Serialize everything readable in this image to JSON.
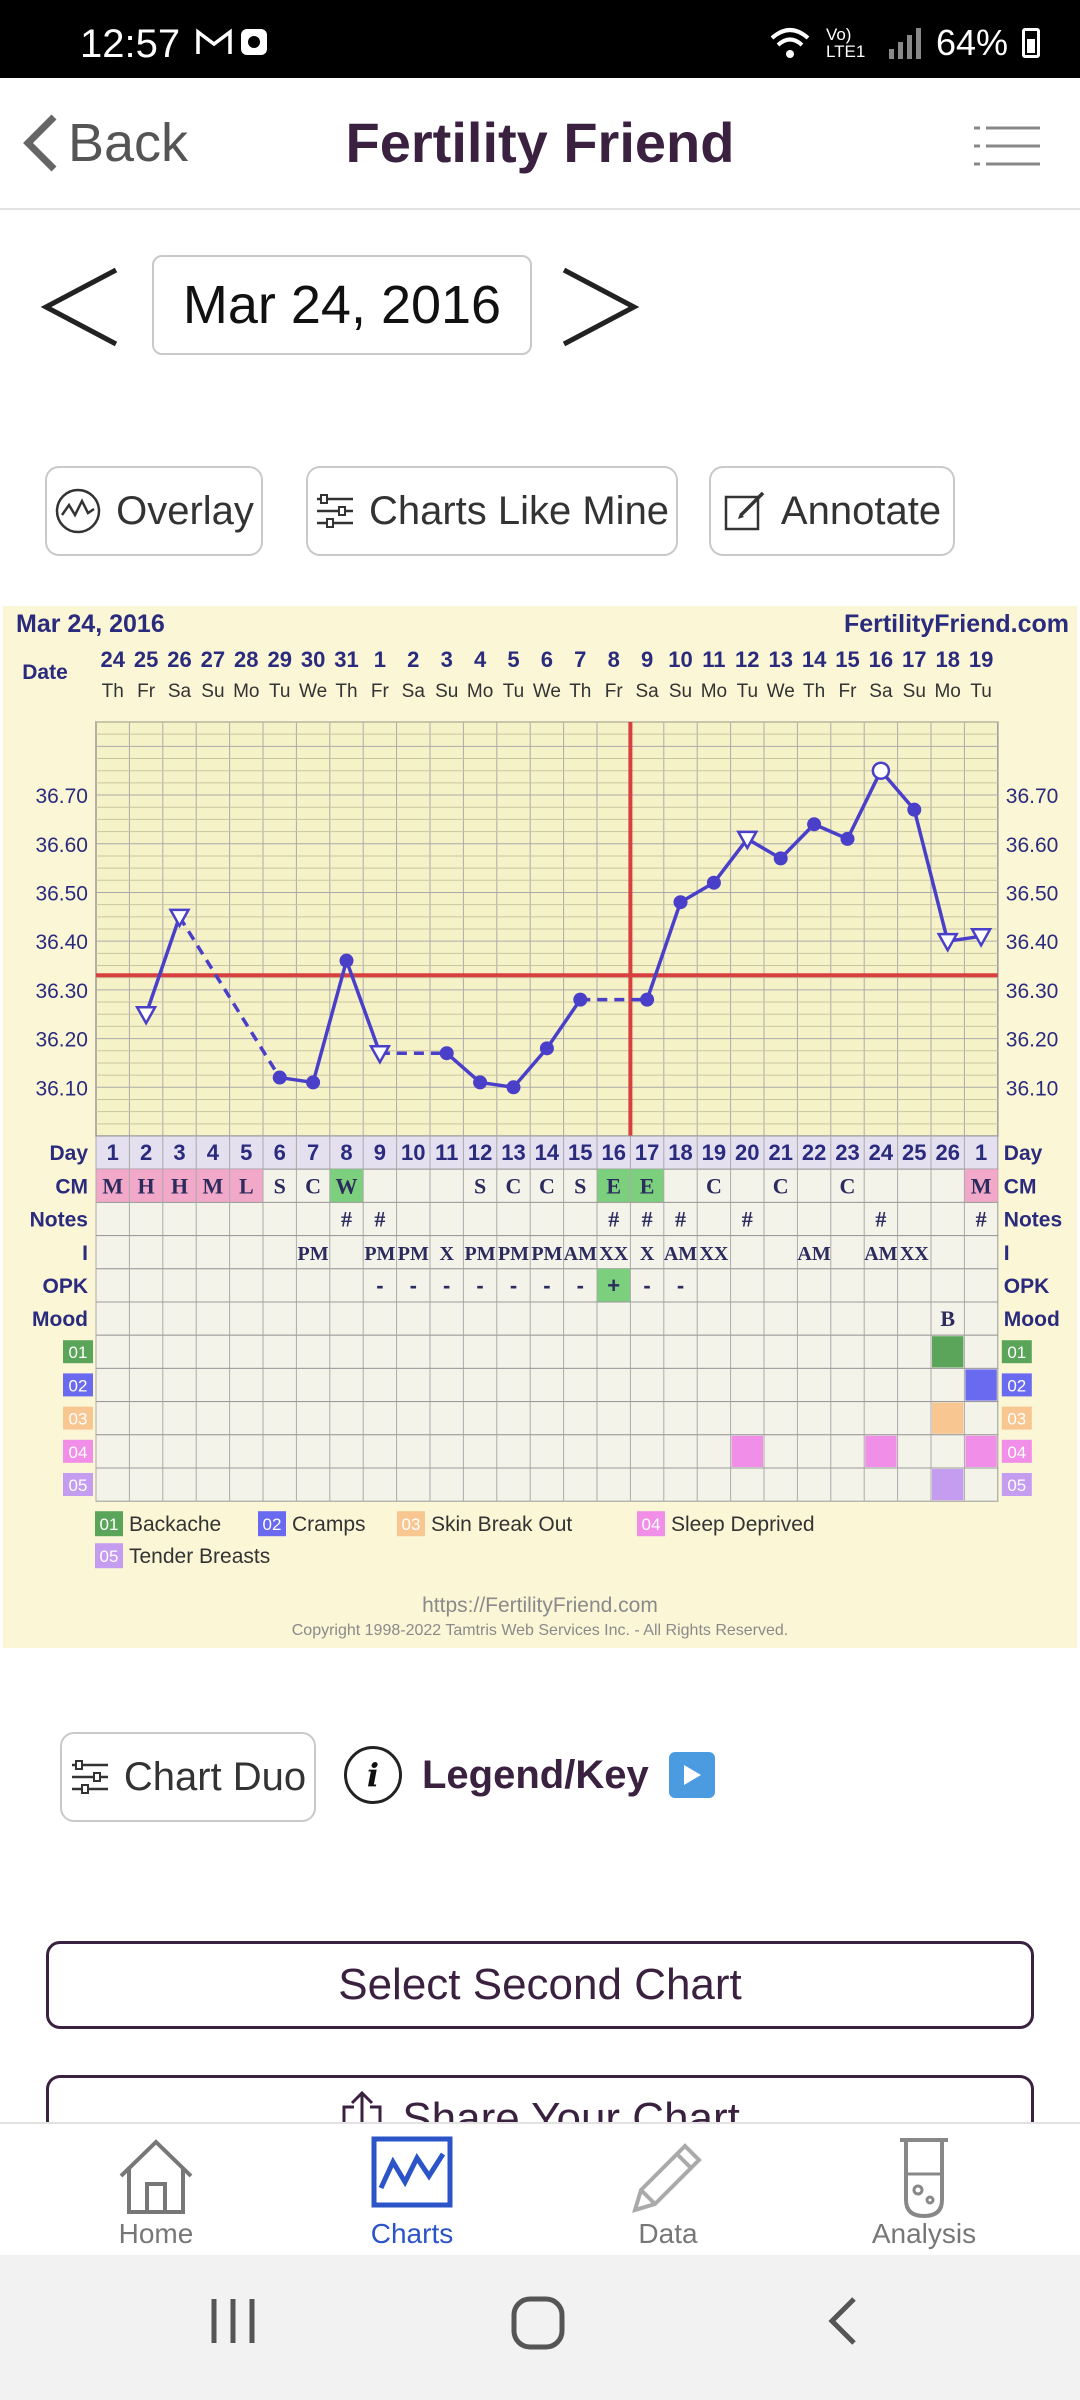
{
  "status_bar": {
    "time": "12:57",
    "notification_icons": [
      "gmail-icon",
      "screen-record-icon"
    ],
    "network_label": "Vo) LTE1",
    "battery": "64%"
  },
  "header": {
    "back_label": "Back",
    "title": "Fertility Friend"
  },
  "date_nav": {
    "current_date": "Mar 24, 2016"
  },
  "toolbar": {
    "overlay_label": "Overlay",
    "charts_like_mine_label": "Charts Like Mine",
    "annotate_label": "Annotate"
  },
  "chart": {
    "top_left_date": "Mar 24, 2016",
    "site_name": "FertilityFriend.com",
    "url": "https://FertilityFriend.com",
    "copyright": "Copyright 1998-2022 Tamtris Web Services Inc. - All Rights Reserved.",
    "row_labels": {
      "date": "Date",
      "day": "Day",
      "cm": "CM",
      "notes": "Notes",
      "intercourse": "I",
      "opk": "OPK",
      "mood": "Mood"
    },
    "legend": [
      {
        "code": "01",
        "label": "Backache",
        "color": "#5aa55a"
      },
      {
        "code": "02",
        "label": "Cramps",
        "color": "#6a6af0"
      },
      {
        "code": "03",
        "label": "Skin Break Out",
        "color": "#f8c690"
      },
      {
        "code": "04",
        "label": "Sleep Deprived",
        "color": "#f08ee8"
      },
      {
        "code": "05",
        "label": "Tender Breasts",
        "color": "#c49cf0"
      }
    ]
  },
  "chart_data": {
    "type": "line",
    "title": "",
    "xlabel": "Day",
    "ylabel": "",
    "ylim": [
      36.0,
      36.85
    ],
    "y_ticks": [
      "36.10",
      "36.20",
      "36.30",
      "36.40",
      "36.50",
      "36.60",
      "36.70"
    ],
    "grid": true,
    "dates": [
      "24",
      "25",
      "26",
      "27",
      "28",
      "29",
      "30",
      "31",
      "1",
      "2",
      "3",
      "4",
      "5",
      "6",
      "7",
      "8",
      "9",
      "10",
      "11",
      "12",
      "13",
      "14",
      "15",
      "16",
      "17",
      "18",
      "19"
    ],
    "weekdays": [
      "Th",
      "Fr",
      "Sa",
      "Su",
      "Mo",
      "Tu",
      "We",
      "Th",
      "Fr",
      "Sa",
      "Su",
      "Mo",
      "Tu",
      "We",
      "Th",
      "Fr",
      "Sa",
      "Su",
      "Mo",
      "Tu",
      "We",
      "Th",
      "Fr",
      "Sa",
      "Su",
      "Mo",
      "Tu"
    ],
    "cycle_days": [
      "1",
      "2",
      "3",
      "4",
      "5",
      "6",
      "7",
      "8",
      "9",
      "10",
      "11",
      "12",
      "13",
      "14",
      "15",
      "16",
      "17",
      "18",
      "19",
      "20",
      "21",
      "22",
      "23",
      "24",
      "25",
      "26",
      "1"
    ],
    "temperatures": [
      null,
      36.25,
      36.45,
      null,
      null,
      36.12,
      36.11,
      36.36,
      36.17,
      null,
      36.17,
      36.11,
      36.1,
      36.18,
      36.28,
      null,
      36.28,
      36.48,
      36.52,
      36.61,
      36.57,
      36.64,
      36.61,
      36.75,
      36.67,
      36.4,
      36.41
    ],
    "markers": [
      "none",
      "triangle",
      "triangle",
      "none",
      "none",
      "dot",
      "dot",
      "dot",
      "triangle",
      "none",
      "dot",
      "dot",
      "dot",
      "dot",
      "dot",
      "none",
      "dot",
      "dot",
      "dot",
      "triangle",
      "dot",
      "dot",
      "dot",
      "circle",
      "dot",
      "triangle",
      "triangle"
    ],
    "coverline": 36.33,
    "ovulation_day": 17,
    "cm": [
      "M",
      "H",
      "H",
      "M",
      "L",
      "S",
      "C",
      "W",
      "",
      "",
      "",
      "S",
      "C",
      "C",
      "S",
      "E",
      "E",
      "",
      "C",
      "",
      "C",
      "",
      "C",
      "",
      "",
      "",
      "M"
    ],
    "notes": [
      "",
      "",
      "",
      "",
      "",
      "",
      "",
      "#",
      "#",
      "",
      "",
      "",
      "",
      "",
      "",
      "#",
      "#",
      "#",
      "",
      "#",
      "",
      "",
      "",
      "#",
      "",
      "",
      "#"
    ],
    "intercourse": [
      "",
      "",
      "",
      "",
      "",
      "",
      "PM",
      "",
      "PM",
      "PM",
      "X",
      "PM",
      "PM",
      "PM",
      "AM",
      "XX",
      "X",
      "AM",
      "XX",
      "",
      "",
      "AM",
      "",
      "AM",
      "XX",
      "",
      ""
    ],
    "opk": [
      "",
      "",
      "",
      "",
      "",
      "",
      "",
      "",
      "-",
      "-",
      "-",
      "-",
      "-",
      "-",
      "-",
      "+",
      "-",
      "-",
      "",
      "",
      "",
      "",
      "",
      "",
      "",
      "",
      ""
    ],
    "mood": [
      "",
      "",
      "",
      "",
      "",
      "",
      "",
      "",
      "",
      "",
      "",
      "",
      "",
      "",
      "",
      "",
      "",
      "",
      "",
      "",
      "",
      "",
      "",
      "",
      "",
      "B",
      ""
    ],
    "symptoms": {
      "01": [
        25
      ],
      "02": [
        26
      ],
      "03": [
        25
      ],
      "04": [
        19,
        23,
        26
      ],
      "05": [
        25
      ]
    }
  },
  "lower": {
    "chart_duo_label": "Chart Duo",
    "legend_key_label": "Legend/Key",
    "select_second_chart_label": "Select Second Chart",
    "share_chart_label": "Share Your Chart"
  },
  "bottom_nav": {
    "items": [
      {
        "label": "Home",
        "icon": "house-icon"
      },
      {
        "label": "Charts",
        "icon": "chart-icon",
        "active": true
      },
      {
        "label": "Data",
        "icon": "pencil-icon"
      },
      {
        "label": "Analysis",
        "icon": "test-tube-icon"
      }
    ]
  }
}
